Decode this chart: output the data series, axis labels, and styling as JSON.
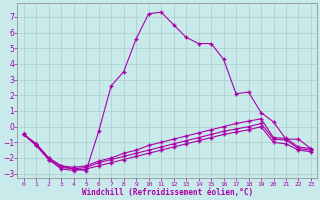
{
  "xlabel": "Windchill (Refroidissement éolien,°C)",
  "bg_color": "#c8eaea",
  "line_color": "#aa00aa",
  "grid_color": "#aacccc",
  "xlim": [
    -0.5,
    23.5
  ],
  "ylim": [
    -3.3,
    7.9
  ],
  "xticks": [
    0,
    1,
    2,
    3,
    4,
    5,
    6,
    7,
    8,
    9,
    10,
    11,
    12,
    13,
    14,
    15,
    16,
    17,
    18,
    19,
    20,
    21,
    22,
    23
  ],
  "yticks": [
    -3,
    -2,
    -1,
    0,
    1,
    2,
    3,
    4,
    5,
    6,
    7
  ],
  "line1_x": [
    0,
    1,
    2,
    3,
    4,
    5,
    6,
    7,
    8,
    9,
    10,
    11,
    12,
    13,
    14,
    15,
    16,
    17,
    18,
    19,
    20,
    21,
    22,
    23
  ],
  "line1_y": [
    -0.5,
    -1.1,
    -2.0,
    -2.5,
    -2.7,
    -2.8,
    -0.3,
    2.6,
    3.5,
    5.6,
    7.2,
    7.3,
    6.5,
    5.7,
    5.3,
    5.3,
    4.3,
    2.1,
    2.2,
    0.9,
    0.3,
    -0.8,
    -0.8,
    -1.4
  ],
  "line2_x": [
    0,
    1,
    2,
    3,
    4,
    5,
    6,
    7,
    8,
    9,
    10,
    11,
    12,
    13,
    14,
    15,
    16,
    17,
    18,
    19,
    20,
    21,
    22,
    23
  ],
  "line2_y": [
    -0.5,
    -1.1,
    -2.0,
    -2.5,
    -2.6,
    -2.5,
    -2.2,
    -2.0,
    -1.7,
    -1.5,
    -1.2,
    -1.0,
    -0.8,
    -0.6,
    -0.4,
    -0.2,
    0.0,
    0.2,
    0.35,
    0.5,
    -0.7,
    -0.75,
    -1.3,
    -1.4
  ],
  "line3_x": [
    0,
    1,
    2,
    3,
    4,
    5,
    6,
    7,
    8,
    9,
    10,
    11,
    12,
    13,
    14,
    15,
    16,
    17,
    18,
    19,
    20,
    21,
    22,
    23
  ],
  "line3_y": [
    -0.5,
    -1.2,
    -2.1,
    -2.6,
    -2.7,
    -2.6,
    -2.3,
    -2.1,
    -1.9,
    -1.7,
    -1.5,
    -1.3,
    -1.1,
    -0.9,
    -0.7,
    -0.5,
    -0.3,
    -0.15,
    0.0,
    0.2,
    -0.8,
    -0.85,
    -1.4,
    -1.5
  ],
  "line4_x": [
    0,
    1,
    2,
    3,
    4,
    5,
    6,
    7,
    8,
    9,
    10,
    11,
    12,
    13,
    14,
    15,
    16,
    17,
    18,
    19,
    20,
    21,
    22,
    23
  ],
  "line4_y": [
    -0.5,
    -1.2,
    -2.1,
    -2.7,
    -2.8,
    -2.7,
    -2.5,
    -2.3,
    -2.1,
    -1.9,
    -1.7,
    -1.5,
    -1.3,
    -1.1,
    -0.9,
    -0.7,
    -0.5,
    -0.35,
    -0.2,
    0.0,
    -1.0,
    -1.1,
    -1.5,
    -1.6
  ]
}
